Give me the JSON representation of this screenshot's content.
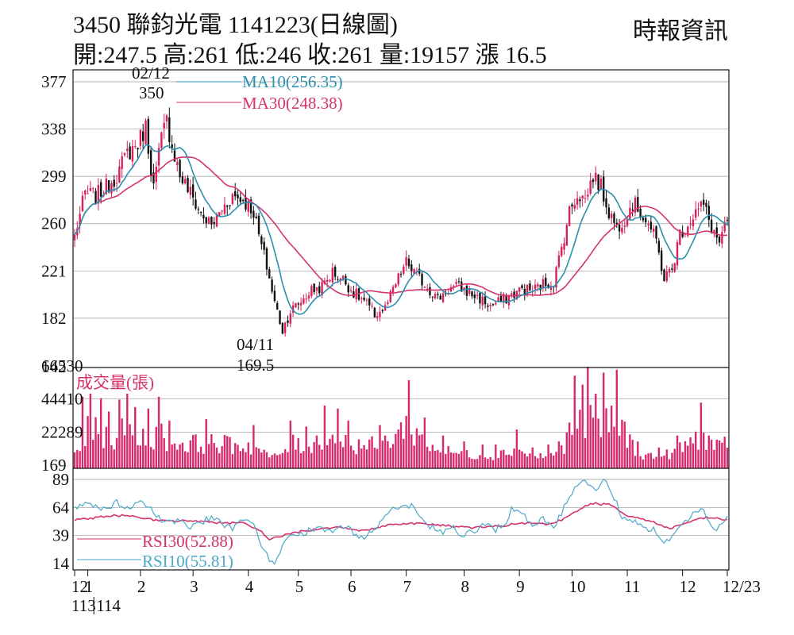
{
  "header": {
    "title": "3450  聯鈞光電 1141223(日線圖)",
    "source": "時報資訊",
    "ohlc": "開:247.5 高:261 低:246 收:261 量:19157 漲 16.5"
  },
  "colors": {
    "ma10": "#2b90b0",
    "ma30": "#d6326e",
    "up_candle": "#d8205a",
    "down_candle": "#111111",
    "volume": "#d8286e",
    "rsi30": "#d6326e",
    "rsi10": "#4aa8c8",
    "grid": "#999999"
  },
  "chart_data": [
    {
      "type": "candlestick",
      "panel": "price",
      "y_ticks": [
        "377",
        "338",
        "299",
        "260",
        "221",
        "182",
        "142"
      ],
      "ylim": [
        142,
        377
      ],
      "legend": [
        "MA10(256.35)",
        "MA30(248.38)"
      ],
      "annotations": [
        {
          "date": "02/12",
          "value": "350",
          "label": "02/12",
          "value_label": "350"
        },
        {
          "date": "04/11",
          "value": "169.5",
          "label": "04/11",
          "value_label": "169.5"
        }
      ],
      "close_profile": [
        [
          0,
          250
        ],
        [
          4,
          285
        ],
        [
          8,
          283
        ],
        [
          12,
          290
        ],
        [
          16,
          300
        ],
        [
          20,
          318
        ],
        [
          24,
          326
        ],
        [
          27,
          340
        ],
        [
          30,
          290
        ],
        [
          33,
          330
        ],
        [
          35,
          345
        ],
        [
          37,
          325
        ],
        [
          40,
          300
        ],
        [
          44,
          285
        ],
        [
          48,
          268
        ],
        [
          52,
          258
        ],
        [
          56,
          272
        ],
        [
          60,
          283
        ],
        [
          64,
          280
        ],
        [
          68,
          270
        ],
        [
          70,
          250
        ],
        [
          73,
          225
        ],
        [
          76,
          195
        ],
        [
          79,
          172
        ],
        [
          82,
          188
        ],
        [
          86,
          196
        ],
        [
          90,
          205
        ],
        [
          94,
          208
        ],
        [
          98,
          220
        ],
        [
          102,
          214
        ],
        [
          106,
          203
        ],
        [
          110,
          196
        ],
        [
          114,
          185
        ],
        [
          118,
          190
        ],
        [
          122,
          210
        ],
        [
          126,
          228
        ],
        [
          130,
          217
        ],
        [
          134,
          208
        ],
        [
          138,
          198
        ],
        [
          142,
          206
        ],
        [
          146,
          208
        ],
        [
          150,
          203
        ],
        [
          154,
          198
        ],
        [
          158,
          192
        ],
        [
          162,
          196
        ],
        [
          166,
          201
        ],
        [
          170,
          206
        ],
        [
          174,
          205
        ],
        [
          178,
          210
        ],
        [
          182,
          212
        ],
        [
          185,
          240
        ],
        [
          188,
          270
        ],
        [
          191,
          285
        ],
        [
          194,
          280
        ],
        [
          197,
          300
        ],
        [
          200,
          290
        ],
        [
          203,
          270
        ],
        [
          206,
          257
        ],
        [
          209,
          265
        ],
        [
          212,
          277
        ],
        [
          215,
          270
        ],
        [
          218,
          260
        ],
        [
          221,
          245
        ],
        [
          224,
          215
        ],
        [
          227,
          222
        ],
        [
          230,
          252
        ],
        [
          233,
          260
        ],
        [
          236,
          270
        ],
        [
          239,
          275
        ],
        [
          242,
          257
        ],
        [
          245,
          244
        ],
        [
          248,
          261
        ]
      ],
      "candles": {
        "count": 249,
        "first_date": "2024-12-24",
        "last_date": "2025-12-23"
      }
    },
    {
      "type": "bar",
      "panel": "volume",
      "title": "成交量(張)",
      "y_ticks": [
        "66530",
        "44410",
        "22289",
        "169"
      ],
      "ylim": [
        169,
        66530
      ],
      "spikes": [
        [
          3,
          46000
        ],
        [
          6,
          48000
        ],
        [
          10,
          45000
        ],
        [
          13,
          36000
        ],
        [
          17,
          44000
        ],
        [
          20,
          48000
        ],
        [
          23,
          39000
        ],
        [
          28,
          38000
        ],
        [
          32,
          46000
        ],
        [
          36,
          30000
        ],
        [
          50,
          31000
        ],
        [
          68,
          27000
        ],
        [
          76,
          8000
        ],
        [
          82,
          30000
        ],
        [
          88,
          26000
        ],
        [
          95,
          40000
        ],
        [
          100,
          38000
        ],
        [
          104,
          30000
        ],
        [
          116,
          27000
        ],
        [
          127,
          57000
        ],
        [
          133,
          32000
        ],
        [
          140,
          20000
        ],
        [
          148,
          16000
        ],
        [
          155,
          14000
        ],
        [
          160,
          14000
        ],
        [
          168,
          24000
        ],
        [
          174,
          12000
        ],
        [
          180,
          14000
        ],
        [
          184,
          16000
        ],
        [
          190,
          60000
        ],
        [
          193,
          54000
        ],
        [
          195,
          66000
        ],
        [
          198,
          48000
        ],
        [
          201,
          62000
        ],
        [
          204,
          40000
        ],
        [
          206,
          64000
        ],
        [
          214,
          16000
        ],
        [
          222,
          12000
        ],
        [
          229,
          20000
        ],
        [
          238,
          42000
        ],
        [
          247,
          19157
        ]
      ]
    },
    {
      "type": "line",
      "panel": "rsi",
      "y_ticks": [
        "89",
        "64",
        "39",
        "14"
      ],
      "ylim": [
        14,
        89
      ],
      "legend": [
        "RSI30(52.88)",
        "RSI10(55.81)"
      ],
      "rsi10_profile": [
        [
          0,
          63
        ],
        [
          4,
          68
        ],
        [
          8,
          65
        ],
        [
          12,
          61
        ],
        [
          16,
          68
        ],
        [
          20,
          62
        ],
        [
          24,
          70
        ],
        [
          28,
          64
        ],
        [
          32,
          55
        ],
        [
          36,
          50
        ],
        [
          40,
          53
        ],
        [
          44,
          47
        ],
        [
          48,
          51
        ],
        [
          52,
          56
        ],
        [
          56,
          49
        ],
        [
          60,
          46
        ],
        [
          64,
          52
        ],
        [
          68,
          48
        ],
        [
          70,
          36
        ],
        [
          73,
          22
        ],
        [
          76,
          12
        ],
        [
          79,
          30
        ],
        [
          82,
          38
        ],
        [
          86,
          40
        ],
        [
          90,
          45
        ],
        [
          94,
          44
        ],
        [
          98,
          42
        ],
        [
          102,
          48
        ],
        [
          106,
          41
        ],
        [
          110,
          38
        ],
        [
          114,
          45
        ],
        [
          118,
          56
        ],
        [
          121,
          64
        ],
        [
          124,
          62
        ],
        [
          128,
          65
        ],
        [
          132,
          52
        ],
        [
          136,
          46
        ],
        [
          140,
          42
        ],
        [
          144,
          46
        ],
        [
          148,
          38
        ],
        [
          152,
          44
        ],
        [
          156,
          50
        ],
        [
          160,
          44
        ],
        [
          164,
          52
        ],
        [
          166,
          62
        ],
        [
          170,
          58
        ],
        [
          174,
          48
        ],
        [
          178,
          54
        ],
        [
          182,
          46
        ],
        [
          186,
          64
        ],
        [
          190,
          80
        ],
        [
          193,
          89
        ],
        [
          196,
          84
        ],
        [
          199,
          80
        ],
        [
          202,
          90
        ],
        [
          205,
          73
        ],
        [
          208,
          56
        ],
        [
          212,
          53
        ],
        [
          216,
          47
        ],
        [
          220,
          44
        ],
        [
          224,
          30
        ],
        [
          227,
          40
        ],
        [
          230,
          48
        ],
        [
          234,
          56
        ],
        [
          238,
          65
        ],
        [
          241,
          50
        ],
        [
          244,
          43
        ],
        [
          248,
          56
        ]
      ],
      "rsi30_profile": [
        [
          0,
          53
        ],
        [
          8,
          55
        ],
        [
          16,
          57
        ],
        [
          24,
          56
        ],
        [
          32,
          52
        ],
        [
          40,
          52
        ],
        [
          48,
          52
        ],
        [
          56,
          50
        ],
        [
          64,
          50
        ],
        [
          70,
          44
        ],
        [
          74,
          36
        ],
        [
          78,
          38
        ],
        [
          82,
          41
        ],
        [
          90,
          44
        ],
        [
          100,
          47
        ],
        [
          110,
          43
        ],
        [
          120,
          49
        ],
        [
          130,
          50
        ],
        [
          140,
          48
        ],
        [
          150,
          46
        ],
        [
          160,
          47
        ],
        [
          170,
          50
        ],
        [
          180,
          49
        ],
        [
          186,
          54
        ],
        [
          192,
          62
        ],
        [
          196,
          68
        ],
        [
          200,
          67
        ],
        [
          204,
          66
        ],
        [
          210,
          57
        ],
        [
          220,
          51
        ],
        [
          226,
          45
        ],
        [
          232,
          50
        ],
        [
          240,
          55
        ],
        [
          248,
          53
        ]
      ]
    }
  ],
  "x_axis": {
    "month_ticks": [
      {
        "index": 0,
        "label": "12"
      },
      {
        "index": 5,
        "label": "1"
      },
      {
        "index": 25,
        "label": "2"
      },
      {
        "index": 45,
        "label": "3"
      },
      {
        "index": 66,
        "label": "4"
      },
      {
        "index": 85,
        "label": "5"
      },
      {
        "index": 105,
        "label": "6"
      },
      {
        "index": 126,
        "label": "7"
      },
      {
        "index": 148,
        "label": "8"
      },
      {
        "index": 169,
        "label": "9"
      },
      {
        "index": 189,
        "label": "10"
      },
      {
        "index": 210,
        "label": "11"
      },
      {
        "index": 231,
        "label": "12"
      },
      {
        "index": 248,
        "label": "12/23"
      }
    ],
    "year_labels": [
      "113",
      "114"
    ]
  }
}
